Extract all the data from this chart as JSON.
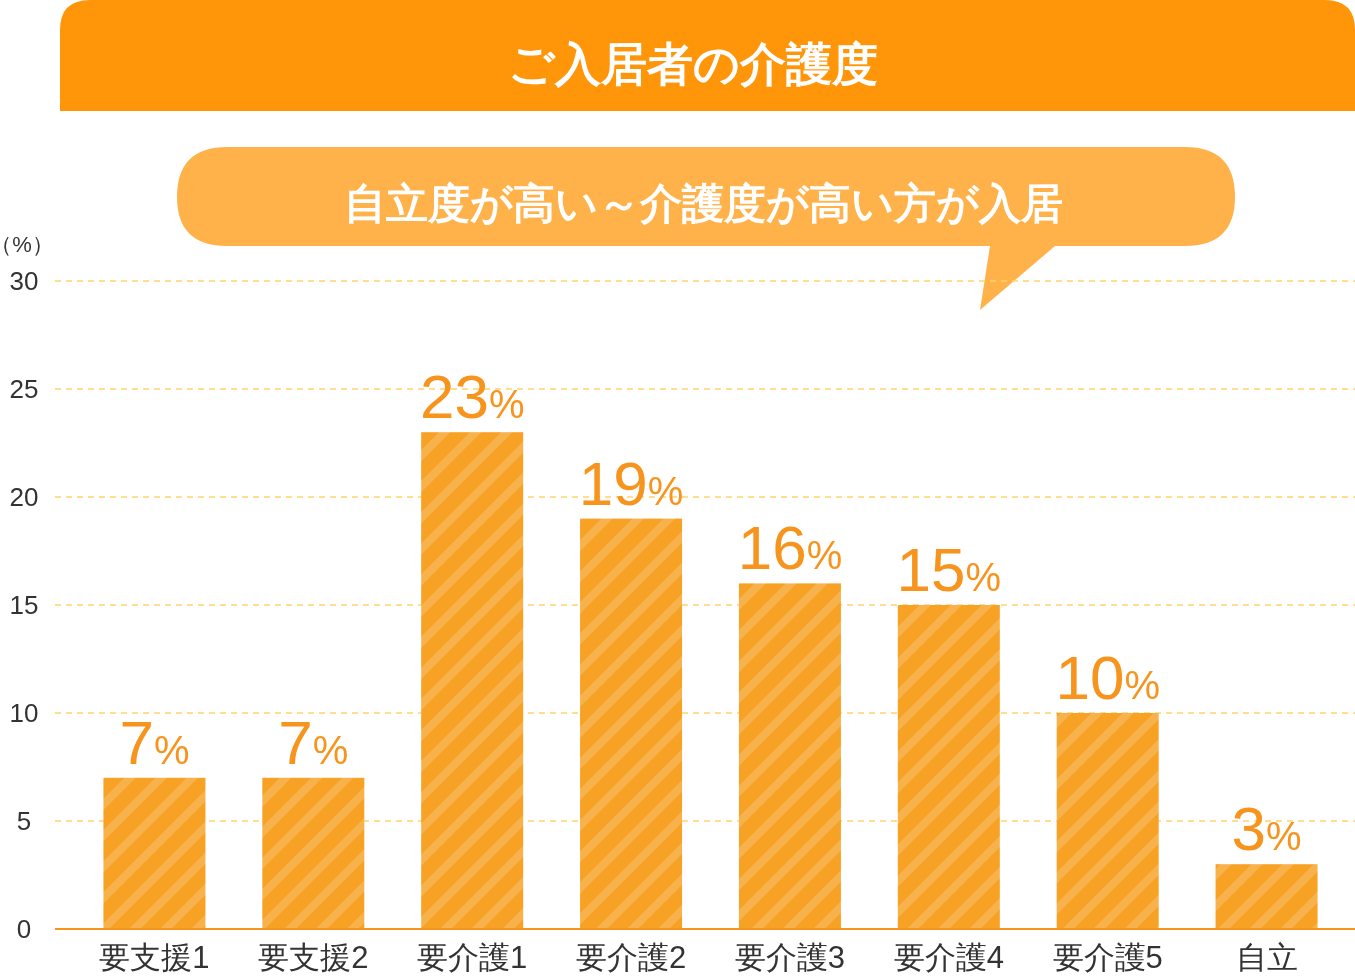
{
  "chart_data": {
    "type": "bar",
    "title": "ご入居者の介護度",
    "subtitle": "自立度が高い～介護度が高い方が入居",
    "ylabel": "（%）",
    "categories": [
      "要支援1",
      "要支援2",
      "要介護1",
      "要介護2",
      "要介護3",
      "要介護4",
      "要介護5",
      "自立"
    ],
    "values": [
      7,
      7,
      23,
      19,
      16,
      15,
      10,
      3
    ],
    "value_labels": [
      "7%",
      "7%",
      "23%",
      "19%",
      "16%",
      "15%",
      "10%",
      "3%"
    ],
    "color": "#f7a125",
    "ylim": [
      0,
      30
    ],
    "yticks": [
      0,
      5,
      10,
      15,
      20,
      25,
      30
    ],
    "grid": "y"
  }
}
